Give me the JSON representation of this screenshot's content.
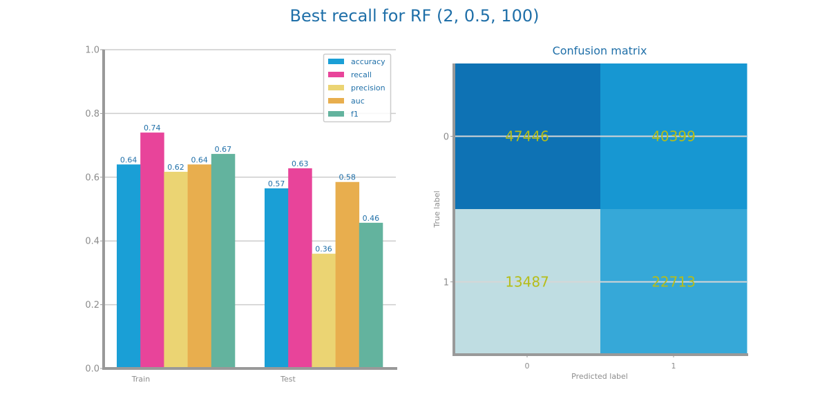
{
  "figure": {
    "title": "Best recall for RF (2, 0.5, 100)"
  },
  "chart_data": [
    {
      "type": "bar",
      "title": "",
      "xlabel": "",
      "ylabel": "",
      "categories": [
        "Train",
        "Test"
      ],
      "ylim": [
        0,
        1.0
      ],
      "yticks": [
        "0.0",
        "0.2",
        "0.4",
        "0.6",
        "0.8",
        "1.0"
      ],
      "grid": "horizontal",
      "legend_position": "top-right",
      "series": [
        {
          "name": "accuracy",
          "color": "#1a9fd6",
          "values": [
            0.64,
            0.565
          ],
          "labels": [
            "0.64",
            "0.57"
          ]
        },
        {
          "name": "recall",
          "color": "#e8449a",
          "values": [
            0.74,
            0.628
          ],
          "labels": [
            "0.74",
            "0.63"
          ]
        },
        {
          "name": "precision",
          "color": "#ebd473",
          "values": [
            0.617,
            0.36
          ],
          "labels": [
            "0.62",
            "0.36"
          ]
        },
        {
          "name": "auc",
          "color": "#e8ae4e",
          "values": [
            0.64,
            0.585
          ],
          "labels": [
            "0.64",
            "0.58"
          ]
        },
        {
          "name": "f1",
          "color": "#63b39e",
          "values": [
            0.673,
            0.457
          ],
          "labels": [
            "0.67",
            "0.46"
          ]
        }
      ]
    },
    {
      "type": "heatmap",
      "title": "Confusion matrix",
      "xlabel": "Predicted label",
      "ylabel": "True label",
      "x_ticks": [
        "0",
        "1"
      ],
      "y_ticks": [
        "0",
        "1"
      ],
      "values": [
        [
          47446,
          40399
        ],
        [
          13487,
          22713
        ]
      ],
      "cell_colors": [
        [
          "#0e72b4",
          "#1797d2"
        ],
        [
          "#bfdde2",
          "#36a8d8"
        ]
      ]
    }
  ]
}
